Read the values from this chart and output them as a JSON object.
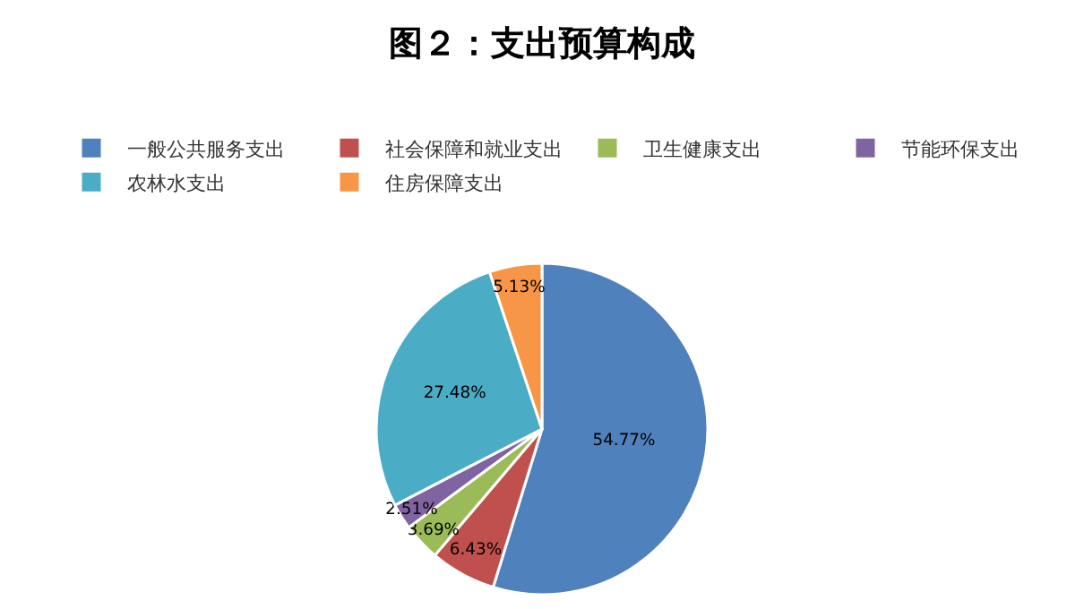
{
  "chart_data": {
    "type": "pie",
    "title": "图２：支出预算构成",
    "categories": [
      "一般公共服务支出",
      "社会保障和就业支出",
      "卫生健康支出",
      "节能环保支出",
      "农林水支出",
      "住房保障支出"
    ],
    "values": [
      54.77,
      6.43,
      3.69,
      2.51,
      27.48,
      5.13
    ],
    "colors": [
      "#4f81bd",
      "#c0504d",
      "#9bbb59",
      "#8064a2",
      "#4bacc6",
      "#f79646"
    ],
    "value_labels": [
      "54.77%",
      "6.43%",
      "3.69%",
      "2.51%",
      "27.48%",
      "5.13%"
    ],
    "legend": "top"
  }
}
